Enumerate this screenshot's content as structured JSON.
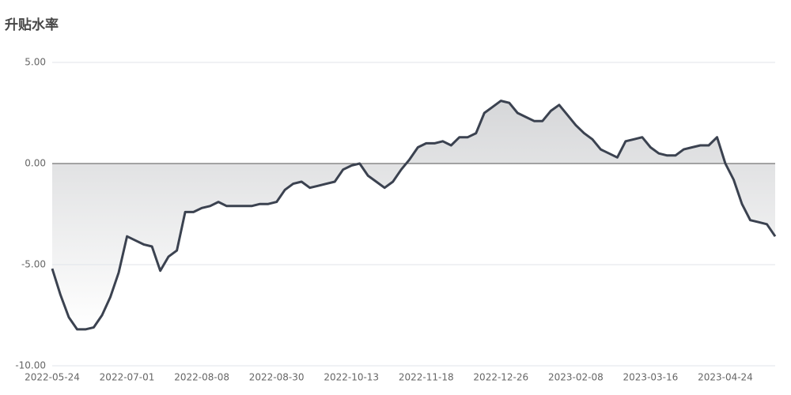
{
  "chart_data": {
    "type": "area-line",
    "title": "升贴水率",
    "color": "#3b4250",
    "fill": "#d6d7d9",
    "grid": true,
    "categories": [
      "2022-05-24",
      null,
      null,
      null,
      null,
      null,
      null,
      null,
      null,
      "2022-07-01",
      null,
      null,
      null,
      null,
      null,
      null,
      null,
      null,
      "2022-08-08",
      null,
      null,
      null,
      null,
      null,
      null,
      null,
      null,
      "2022-08-30",
      null,
      null,
      null,
      null,
      null,
      null,
      null,
      null,
      "2022-10-13",
      null,
      null,
      null,
      null,
      null,
      null,
      null,
      null,
      "2022-11-18",
      null,
      null,
      null,
      null,
      null,
      null,
      null,
      null,
      "2022-12-26",
      null,
      null,
      null,
      null,
      null,
      null,
      null,
      null,
      "2023-02-08",
      null,
      null,
      null,
      null,
      null,
      null,
      null,
      null,
      "2023-03-16",
      null,
      null,
      null,
      null,
      null,
      null,
      null,
      null,
      "2023-04-24",
      null,
      null,
      null,
      null,
      null,
      null
    ],
    "values": [
      -5.2,
      -6.5,
      -7.6,
      -8.2,
      -8.2,
      -8.1,
      -7.5,
      -6.6,
      -5.4,
      -3.6,
      -3.8,
      -4.0,
      -4.1,
      -5.3,
      -4.6,
      -4.3,
      -2.4,
      -2.4,
      -2.2,
      -2.1,
      -1.9,
      -2.1,
      -2.1,
      -2.1,
      -2.1,
      -2.0,
      -2.0,
      -1.9,
      -1.3,
      -1.0,
      -0.9,
      -1.2,
      -1.1,
      -1.0,
      -0.9,
      -0.3,
      -0.1,
      0.0,
      -0.6,
      -0.9,
      -1.2,
      -0.9,
      -0.3,
      0.2,
      0.8,
      1.0,
      1.0,
      1.1,
      0.9,
      1.3,
      1.3,
      1.5,
      2.5,
      2.8,
      3.1,
      3.0,
      2.5,
      2.3,
      2.1,
      2.1,
      2.6,
      2.9,
      2.4,
      1.9,
      1.5,
      1.2,
      0.7,
      0.5,
      0.3,
      1.1,
      1.2,
      1.3,
      0.8,
      0.5,
      0.4,
      0.4,
      0.7,
      0.8,
      0.9,
      0.9,
      1.3,
      0.0,
      -0.8,
      -2.0,
      -2.8,
      -2.9,
      -3.0,
      -3.6
    ],
    "ylim": [
      -10,
      5
    ],
    "yticks": [
      {
        "value": -10,
        "label": "-10.00"
      },
      {
        "value": -5,
        "label": "-5.00"
      },
      {
        "value": 0,
        "label": "0.00"
      },
      {
        "value": 5,
        "label": "5.00"
      }
    ]
  }
}
